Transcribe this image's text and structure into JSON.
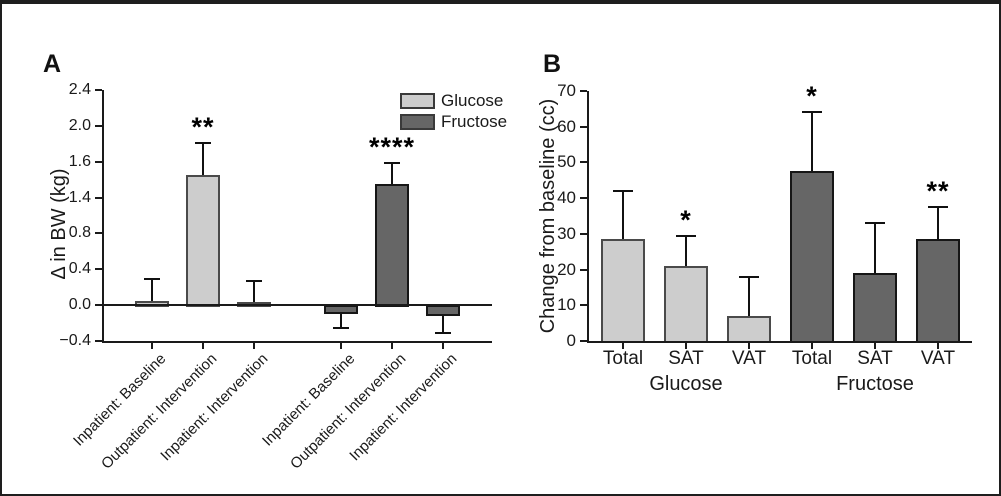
{
  "figure": {
    "panels": [
      {
        "label": "A"
      },
      {
        "label": "B"
      }
    ],
    "colors": {
      "glucose_fill": "#cdcdcd",
      "glucose_border": "#4a4a4a",
      "fructose_fill": "#666666",
      "fructose_border": "#161616",
      "axis": "#1a1a1a",
      "frame": "#1e1e1e"
    }
  },
  "chart_data": [
    {
      "id": "A",
      "type": "bar",
      "title": "",
      "ylabel": "Δ in BW (kg)",
      "ylim": [
        -0.4,
        2.4
      ],
      "ytick_labels": [
        "2.4",
        "2.0",
        "1.6",
        "1.4",
        "0.8",
        "0.4",
        "0.0",
        "−0.4"
      ],
      "axis_note": "y tick labels printed at equal spacing exactly as in source figure",
      "grid": false,
      "legend_position": "top-right",
      "legend": [
        {
          "label": "Glucose",
          "series": "glucose"
        },
        {
          "label": "Fructose",
          "series": "fructose"
        }
      ],
      "bars": [
        {
          "label": "Inpatient: Baseline",
          "series": "glucose",
          "value": 0.05,
          "error": 0.24,
          "sig": ""
        },
        {
          "label": "Outpatient: Intervention",
          "series": "glucose",
          "value": 1.45,
          "error": 0.36,
          "sig": "**"
        },
        {
          "label": "Inpatient: Intervention",
          "series": "glucose",
          "value": 0.03,
          "error": 0.24,
          "sig": ""
        },
        {
          "label": "Inpatient: Baseline",
          "series": "fructose",
          "value": -0.1,
          "error": 0.15,
          "sig": ""
        },
        {
          "label": "Outpatient: Intervention",
          "series": "fructose",
          "value": 1.35,
          "error": 0.24,
          "sig": "****"
        },
        {
          "label": "Inpatient: Intervention",
          "series": "fructose",
          "value": -0.12,
          "error": 0.19,
          "sig": ""
        }
      ]
    },
    {
      "id": "B",
      "type": "bar",
      "title": "",
      "ylabel": "Change from baseline (cc)",
      "ylim": [
        0,
        70
      ],
      "ytick_labels": [
        "70",
        "60",
        "50",
        "40",
        "30",
        "20",
        "10",
        "0"
      ],
      "grid": false,
      "group_labels": [
        "Glucose",
        "Fructose"
      ],
      "bars": [
        {
          "label": "Total",
          "series": "glucose",
          "value": 28.5,
          "error": 13.5,
          "sig": ""
        },
        {
          "label": "SAT",
          "series": "glucose",
          "value": 21.0,
          "error": 8.5,
          "sig": "*"
        },
        {
          "label": "VAT",
          "series": "glucose",
          "value": 7.0,
          "error": 11.0,
          "sig": ""
        },
        {
          "label": "Total",
          "series": "fructose",
          "value": 47.5,
          "error": 16.5,
          "sig": "*"
        },
        {
          "label": "SAT",
          "series": "fructose",
          "value": 19.0,
          "error": 14.0,
          "sig": ""
        },
        {
          "label": "VAT",
          "series": "fructose",
          "value": 28.5,
          "error": 9.0,
          "sig": "**"
        }
      ]
    }
  ]
}
